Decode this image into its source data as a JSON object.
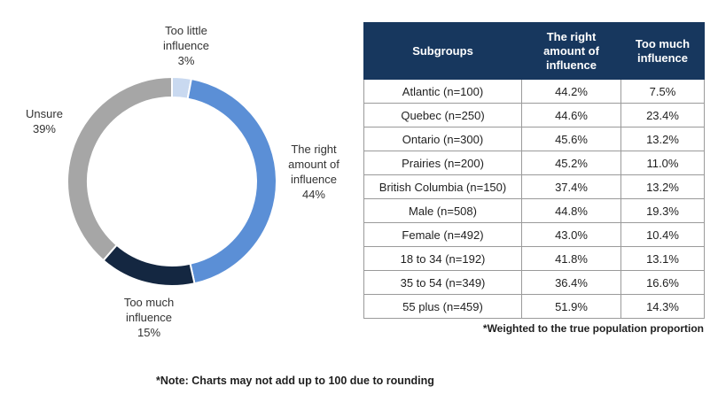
{
  "chart_data": [
    {
      "type": "pie",
      "style": "donut",
      "title": "",
      "slices": [
        {
          "name": "Too little influence",
          "label_lines": [
            "Too little",
            "influence"
          ],
          "value": 3,
          "display": "3%",
          "color": "#c9d9f0"
        },
        {
          "name": "The right amount of influence",
          "label_lines": [
            "The right",
            "amount of",
            "influence"
          ],
          "value": 44,
          "display": "44%",
          "color": "#5b8fd6"
        },
        {
          "name": "Too much influence",
          "label_lines": [
            "Too much",
            "influence"
          ],
          "value": 15,
          "display": "15%",
          "color": "#142741"
        },
        {
          "name": "Unsure",
          "label_lines": [
            "Unsure"
          ],
          "value": 39,
          "display": "39%",
          "color": "#a6a6a6"
        }
      ]
    },
    {
      "type": "table",
      "columns": [
        "Subgroups",
        "The right amount of influence",
        "Too much influence"
      ],
      "rows": [
        [
          "Atlantic (n=100)",
          "44.2%",
          "7.5%"
        ],
        [
          "Quebec (n=250)",
          "44.6%",
          "23.4%"
        ],
        [
          "Ontario (n=300)",
          "45.6%",
          "13.2%"
        ],
        [
          "Prairies (n=200)",
          "45.2%",
          "11.0%"
        ],
        [
          "British Columbia (n=150)",
          "37.4%",
          "13.2%"
        ],
        [
          "Male (n=508)",
          "44.8%",
          "19.3%"
        ],
        [
          "Female (n=492)",
          "43.0%",
          "10.4%"
        ],
        [
          "18 to 34 (n=192)",
          "41.8%",
          "13.1%"
        ],
        [
          "35 to 54 (n=349)",
          "36.4%",
          "16.6%"
        ],
        [
          "55 plus (n=459)",
          "51.9%",
          "14.3%"
        ]
      ]
    }
  ],
  "notes": {
    "weighted": "*Weighted to the true population proportion",
    "rounding": "*Note: Charts may not add up to 100 due to rounding"
  }
}
